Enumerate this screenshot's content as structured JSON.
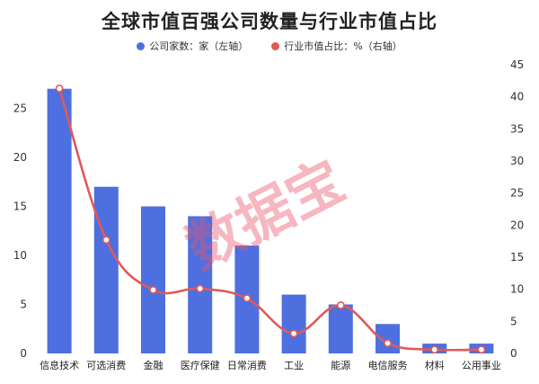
{
  "chart_data": {
    "type": "bar+line",
    "title": "全球市值百强公司数量与行业市值占比",
    "legend_position": "top-center",
    "grid": false,
    "categories": [
      "信息技术",
      "可选消费",
      "金融",
      "医疗保健",
      "日常消费",
      "工业",
      "能源",
      "电信服务",
      "材料",
      "公用事业"
    ],
    "series": [
      {
        "name": "公司家数：家（左轴）",
        "kind": "bar",
        "axis": "left",
        "color": "#4e6fe0",
        "values": [
          27,
          17,
          15,
          14,
          11,
          6,
          5,
          3,
          1,
          1
        ]
      },
      {
        "name": "行业市值占比：%（右轴）",
        "kind": "line",
        "axis": "right",
        "color": "#e05a58",
        "values": [
          41.3,
          17.7,
          9.9,
          10.1,
          8.6,
          3.1,
          7.5,
          1.6,
          0.6,
          0.6
        ]
      }
    ],
    "left_axis": {
      "ylim": [
        0,
        30
      ],
      "ticks": [
        "0",
        "5",
        "10",
        "15",
        "20",
        "25"
      ],
      "tick_values": [
        0,
        5,
        10,
        15,
        20,
        25
      ]
    },
    "right_axis": {
      "ylim": [
        0,
        45
      ],
      "ticks": [
        "0",
        "5",
        "10",
        "15",
        "20",
        "25",
        "30",
        "35",
        "40",
        "45"
      ],
      "tick_values": [
        0,
        5,
        10,
        15,
        20,
        25,
        30,
        35,
        40,
        45
      ]
    }
  },
  "watermark": {
    "text": "数据宝"
  }
}
